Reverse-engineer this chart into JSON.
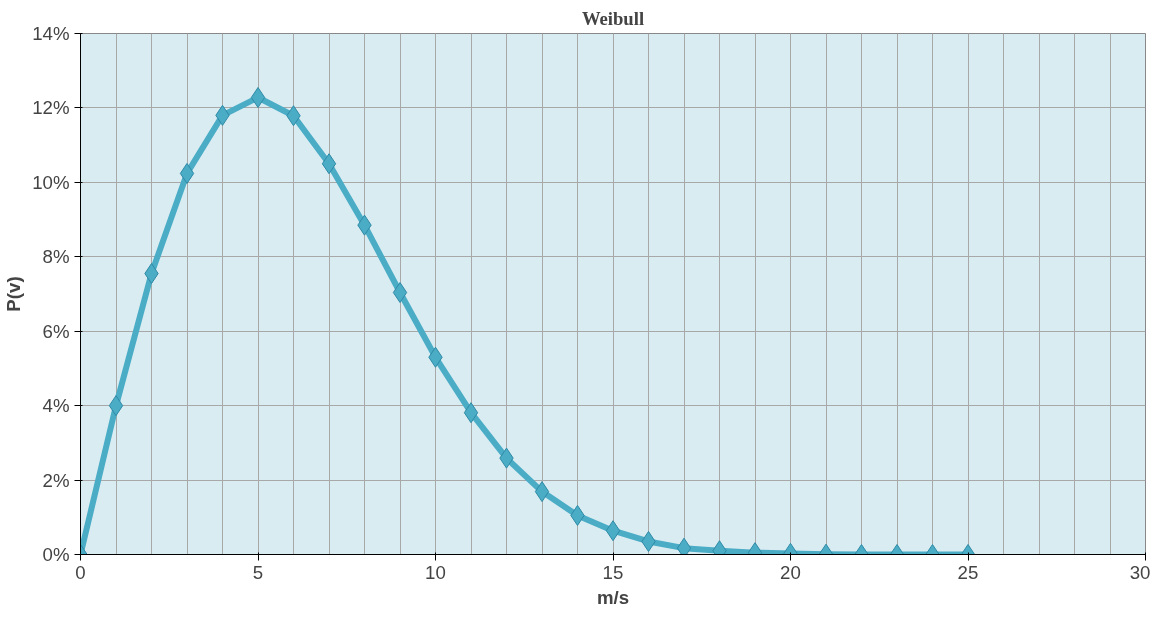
{
  "chart_data": {
    "type": "line",
    "title": "Weibull",
    "xlabel": "m/s",
    "ylabel": "P(v)",
    "x": [
      0,
      1,
      2,
      3,
      4,
      5,
      6,
      7,
      8,
      9,
      10,
      11,
      12,
      13,
      14,
      15,
      16,
      17,
      18,
      19,
      20,
      21,
      22,
      23,
      24,
      25
    ],
    "series": [
      {
        "color": "#4bacc6",
        "values": [
          0,
          4.0,
          7.55,
          10.24,
          11.8,
          12.28,
          11.79,
          10.5,
          8.85,
          7.04,
          5.3,
          3.81,
          2.59,
          1.69,
          1.05,
          0.64,
          0.35,
          0.17,
          0.1,
          0.05,
          0.03,
          0.01,
          0,
          0,
          0,
          0
        ]
      }
    ],
    "xlim": [
      0,
      30
    ],
    "xticks": [
      0,
      5,
      10,
      15,
      20,
      25,
      30
    ],
    "ylim": [
      0,
      14
    ],
    "yticks": [
      {
        "value": 0,
        "label": "0%"
      },
      {
        "value": 2,
        "label": "2%"
      },
      {
        "value": 4,
        "label": "4%"
      },
      {
        "value": 6,
        "label": "6%"
      },
      {
        "value": 8,
        "label": "8%"
      },
      {
        "value": 10,
        "label": "10%"
      },
      {
        "value": 12,
        "label": "12%"
      },
      {
        "value": 14,
        "label": "14%"
      }
    ],
    "grid": true,
    "marker": "diamond",
    "line_style": "solid"
  }
}
